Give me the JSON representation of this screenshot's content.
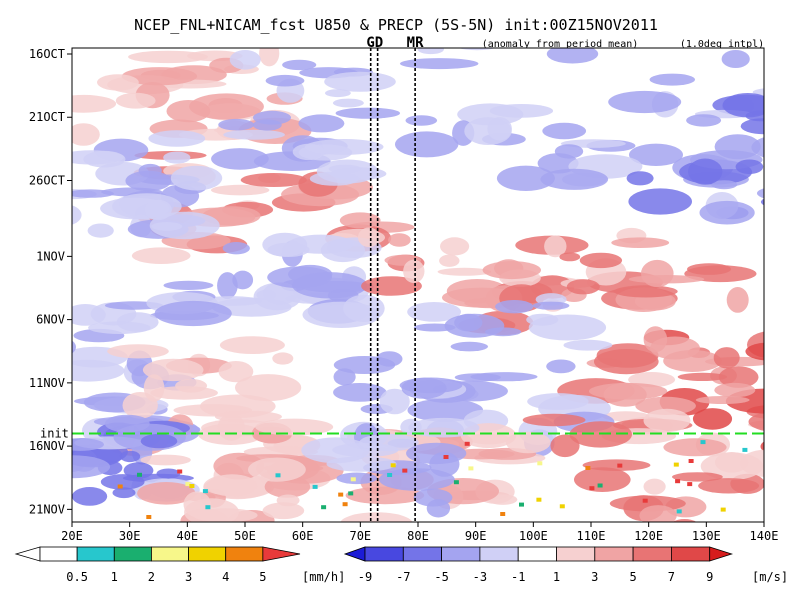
{
  "chart_data": {
    "type": "heatmap",
    "title": "NCEP_FNL+NICAM_fcst U850 & PRECP (5S-5N) init:00Z15NOV2011",
    "subtitle_left": "(anomaly from period mean)",
    "subtitle_right": "(1.0deg intpl)",
    "x_ticks": [
      "20E",
      "30E",
      "40E",
      "50E",
      "60E",
      "70E",
      "80E",
      "90E",
      "100E",
      "110E",
      "120E",
      "130E",
      "140E"
    ],
    "x_range_deg": [
      20,
      140
    ],
    "y_ticks": [
      "16OCT",
      "21OCT",
      "26OCT",
      "1NOV",
      "6NOV",
      "11NOV",
      "16NOV",
      "21NOV"
    ],
    "y_tick_days": [
      0,
      5,
      10,
      16,
      21,
      26,
      31,
      36
    ],
    "y_range_days": [
      0,
      37
    ],
    "init_label": "init",
    "init_day": 30,
    "markers": [
      {
        "label": "GD",
        "lon": 72.5,
        "color": "#cc0000"
      },
      {
        "label": "MR",
        "lon": 79.5,
        "color": "#cc0000"
      }
    ],
    "marker_lines_lon": [
      71.8,
      73.0,
      79.5
    ],
    "precip_colorbar": {
      "labels": [
        "0.5",
        "1",
        "2",
        "3",
        "4",
        "5"
      ],
      "unit": "[mm/h]",
      "colors": [
        "#27c7cd",
        "#1aaf6f",
        "#f7f78a",
        "#f0d200",
        "#f0820e",
        "#e83a3a"
      ]
    },
    "u850_colorbar": {
      "labels": [
        "-9",
        "-7",
        "-5",
        "-3",
        "-1",
        "1",
        "3",
        "5",
        "7",
        "9"
      ],
      "unit": "[m/s]",
      "colors": [
        "#1c1cd6",
        "#4848e0",
        "#7474e8",
        "#a4a4f0",
        "#d0d0f6",
        "#ffffff",
        "#f6d0d0",
        "#f0a4a4",
        "#e87474",
        "#e04848",
        "#d61c1c"
      ]
    }
  }
}
